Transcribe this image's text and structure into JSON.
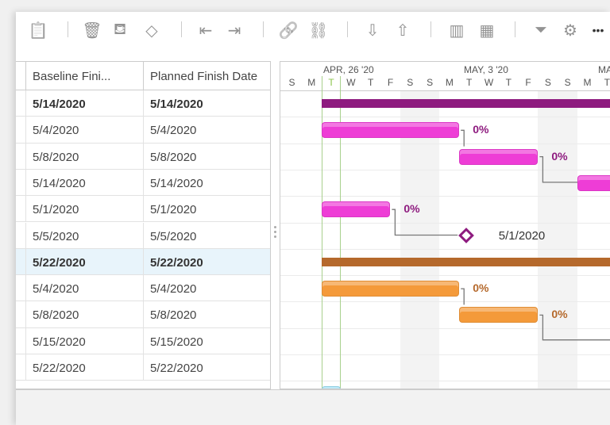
{
  "toolbar": {
    "icons": [
      "clipboard-icon",
      "trash-icon",
      "paint-bucket-icon",
      "milestone-diamond-icon",
      "outdent-icon",
      "indent-icon",
      "link-icon",
      "unlink-icon",
      "import-icon",
      "export-icon",
      "columns-icon",
      "table-icon",
      "filter-icon",
      "gear-icon",
      "more-icon"
    ]
  },
  "grid": {
    "columns": [
      "Baseline Fini...",
      "Planned Finish Date"
    ],
    "rows": [
      {
        "baseline": "5/14/2020",
        "planned": "5/14/2020",
        "bold": true
      },
      {
        "baseline": "5/4/2020",
        "planned": "5/4/2020"
      },
      {
        "baseline": "5/8/2020",
        "planned": "5/8/2020"
      },
      {
        "baseline": "5/14/2020",
        "planned": "5/14/2020"
      },
      {
        "baseline": "5/1/2020",
        "planned": "5/1/2020"
      },
      {
        "baseline": "5/5/2020",
        "planned": "5/5/2020"
      },
      {
        "baseline": "5/22/2020",
        "planned": "5/22/2020",
        "bold": true,
        "selected": true
      },
      {
        "baseline": "5/4/2020",
        "planned": "5/4/2020"
      },
      {
        "baseline": "5/8/2020",
        "planned": "5/8/2020"
      },
      {
        "baseline": "5/15/2020",
        "planned": "5/15/2020"
      },
      {
        "baseline": "5/22/2020",
        "planned": "5/22/2020"
      }
    ]
  },
  "gantt": {
    "months": [
      "APR, 26 '20",
      "MAY, 3 '20",
      "MA"
    ],
    "days": [
      "S",
      "M",
      "T",
      "W",
      "T",
      "F",
      "S",
      "S",
      "M",
      "T",
      "W",
      "T",
      "F",
      "S",
      "S",
      "M",
      "T"
    ],
    "today_label": "T",
    "milestone_label": "5/1/2020",
    "percent": "0%",
    "colors": {
      "purple_summary": "#8e1b7f",
      "pink": "#ee3dd6",
      "brown_summary": "#b5692c",
      "orange": "#f49a3a",
      "today": "#8bc34a",
      "cyan": "#9fe0f5"
    }
  }
}
